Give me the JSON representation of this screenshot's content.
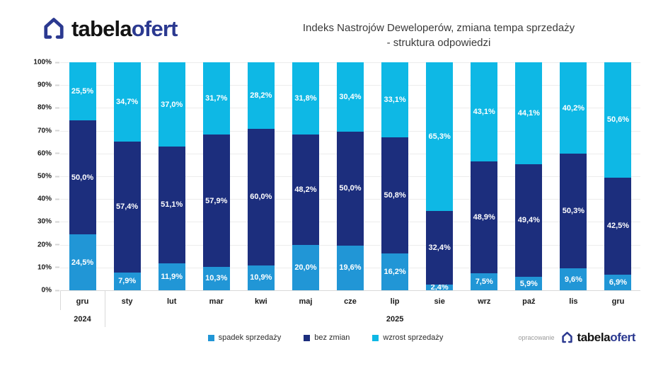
{
  "header": {
    "logo": {
      "text_black": "tabela",
      "text_blue": "ofert"
    },
    "title_line1": "Indeks Nastrojów Deweloperów, zmiana tempa sprzedaży",
    "title_line2": "- struktura odpowiedzi"
  },
  "chart_data": {
    "type": "bar",
    "stacked": true,
    "grid": true,
    "legend_position": "bottom",
    "ylim": [
      0,
      100
    ],
    "y_ticks": [
      "100%",
      "90%",
      "80%",
      "70%",
      "60%",
      "50%",
      "40%",
      "30%",
      "20%",
      "10%",
      "0%"
    ],
    "categories": [
      "gru",
      "sty",
      "lut",
      "mar",
      "kwi",
      "maj",
      "cze",
      "lip",
      "sie",
      "wrz",
      "paź",
      "lis",
      "gru"
    ],
    "year_groups": [
      {
        "label": "2024",
        "category_index": 0
      },
      {
        "label": "2025",
        "category_index": 7
      }
    ],
    "series": [
      {
        "name": "spadek sprzedaży",
        "color": "#2196d6",
        "values": [
          24.5,
          7.9,
          11.9,
          10.3,
          10.9,
          20.0,
          19.6,
          16.2,
          2.4,
          7.5,
          5.9,
          9.6,
          6.9
        ],
        "labels": [
          "24,5%",
          "7,9%",
          "11,9%",
          "10,3%",
          "10,9%",
          "20,0%",
          "19,6%",
          "16,2%",
          "2,4%",
          "7,5%",
          "5,9%",
          "9,6%",
          "6,9%"
        ]
      },
      {
        "name": "bez zmian",
        "color": "#1c2e7d",
        "values": [
          50.0,
          57.4,
          51.1,
          57.9,
          60.0,
          48.2,
          50.0,
          50.8,
          32.4,
          48.9,
          49.4,
          50.3,
          42.5
        ],
        "labels": [
          "50,0%",
          "57,4%",
          "51,1%",
          "57,9%",
          "60,0%",
          "48,2%",
          "50,0%",
          "50,8%",
          "32,4%",
          "48,9%",
          "49,4%",
          "50,3%",
          "42,5%"
        ]
      },
      {
        "name": "wzrost sprzedaży",
        "color": "#0eb8e5",
        "values": [
          25.5,
          34.7,
          37.0,
          31.7,
          28.2,
          31.8,
          30.4,
          33.1,
          65.3,
          43.1,
          44.1,
          40.2,
          50.6
        ],
        "labels": [
          "25,5%",
          "34,7%",
          "37,0%",
          "31,7%",
          "28,2%",
          "31,8%",
          "30,4%",
          "33,1%",
          "65,3%",
          "43,1%",
          "44,1%",
          "40,2%",
          "50,6%"
        ]
      }
    ]
  },
  "footer": {
    "attribution_label": "opracowanie",
    "logo": {
      "text_black": "tabela",
      "text_blue": "ofert"
    }
  }
}
